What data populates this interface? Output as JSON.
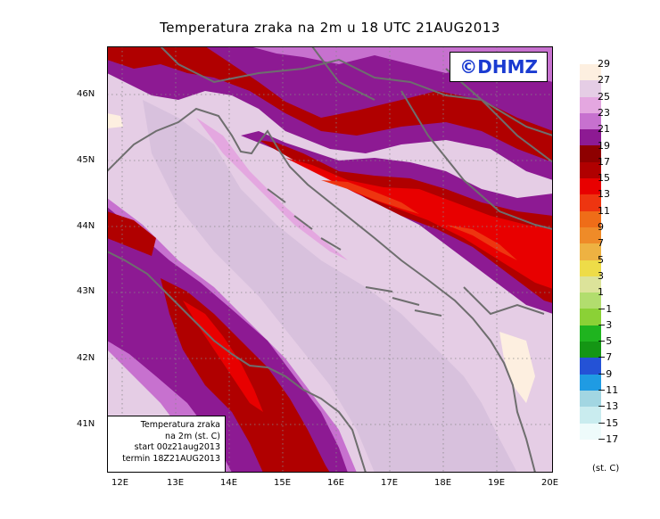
{
  "title": "Temperatura zraka na 2m u 18 UTC 21AUG2013",
  "logo": "©DHMZ",
  "info": {
    "line1": "Temperatura zraka",
    "line2": "na 2m (st. C)",
    "line3": "start 00z21aug2013",
    "line4": "termin 18Z21AUG2013"
  },
  "axes": {
    "lon_labels": [
      "12E",
      "13E",
      "14E",
      "15E",
      "16E",
      "17E",
      "18E",
      "19E",
      "20E"
    ],
    "lat_labels": [
      "46N",
      "45N",
      "44N",
      "43N",
      "42N",
      "41N"
    ]
  },
  "legend": {
    "unit": "(st. C)",
    "levels": [
      "29",
      "27",
      "25",
      "23",
      "21",
      "19",
      "17",
      "15",
      "13",
      "11",
      "9",
      "7",
      "5",
      "3",
      "1",
      "−1",
      "−3",
      "−5",
      "−7",
      "−9",
      "−11",
      "−13",
      "−15",
      "−17"
    ],
    "colors": [
      "#fdefe0",
      "#e5cde5",
      "#e4a7e0",
      "#c771cf",
      "#8d1a93",
      "#8e0000",
      "#b00000",
      "#e80000",
      "#ee3510",
      "#ef6d18",
      "#ef8b28",
      "#eeb242",
      "#eedc48",
      "#dce39a",
      "#b2dd6e",
      "#8bd136",
      "#1fb41f",
      "#149614",
      "#2452d6",
      "#1f9be3",
      "#a2d6e2",
      "#c9ecef",
      "#eefbfb"
    ]
  }
}
